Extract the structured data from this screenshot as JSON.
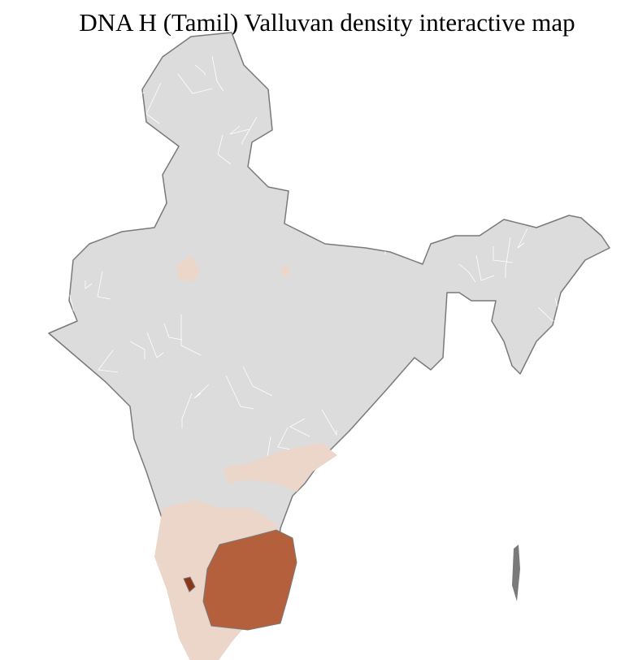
{
  "title": "DNA H (Tamil) Valluvan density interactive map",
  "colors": {
    "no_data": "#dcdcdc",
    "low": "#ecd6c9",
    "high": "#b4603c",
    "highest": "#8c3517",
    "state_border": "#7a7a7a",
    "district_border": "#ffffff"
  }
}
